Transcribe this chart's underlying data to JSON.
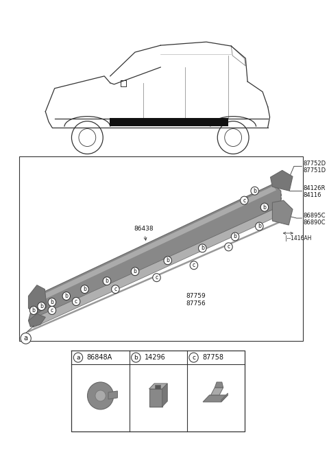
{
  "bg_color": "#ffffff",
  "line_color": "#333333",
  "gray_dark": "#666666",
  "gray_mid": "#888888",
  "gray_light": "#aaaaaa",
  "car_rocker_color": "#111111",
  "right_labels_1": [
    "87752D",
    "87751D"
  ],
  "right_labels_2": [
    "84126R",
    "84116"
  ],
  "right_labels_3": [
    "86895C",
    "86890C"
  ],
  "right_labels_4": [
    "|--1416AH"
  ],
  "center_label1": "86438",
  "center_label2a": "87759",
  "center_label2b": "87756",
  "legend": [
    {
      "letter": "a",
      "part": "86848A"
    },
    {
      "letter": "b",
      "part": "14296"
    },
    {
      "letter": "c",
      "part": "87758"
    }
  ]
}
